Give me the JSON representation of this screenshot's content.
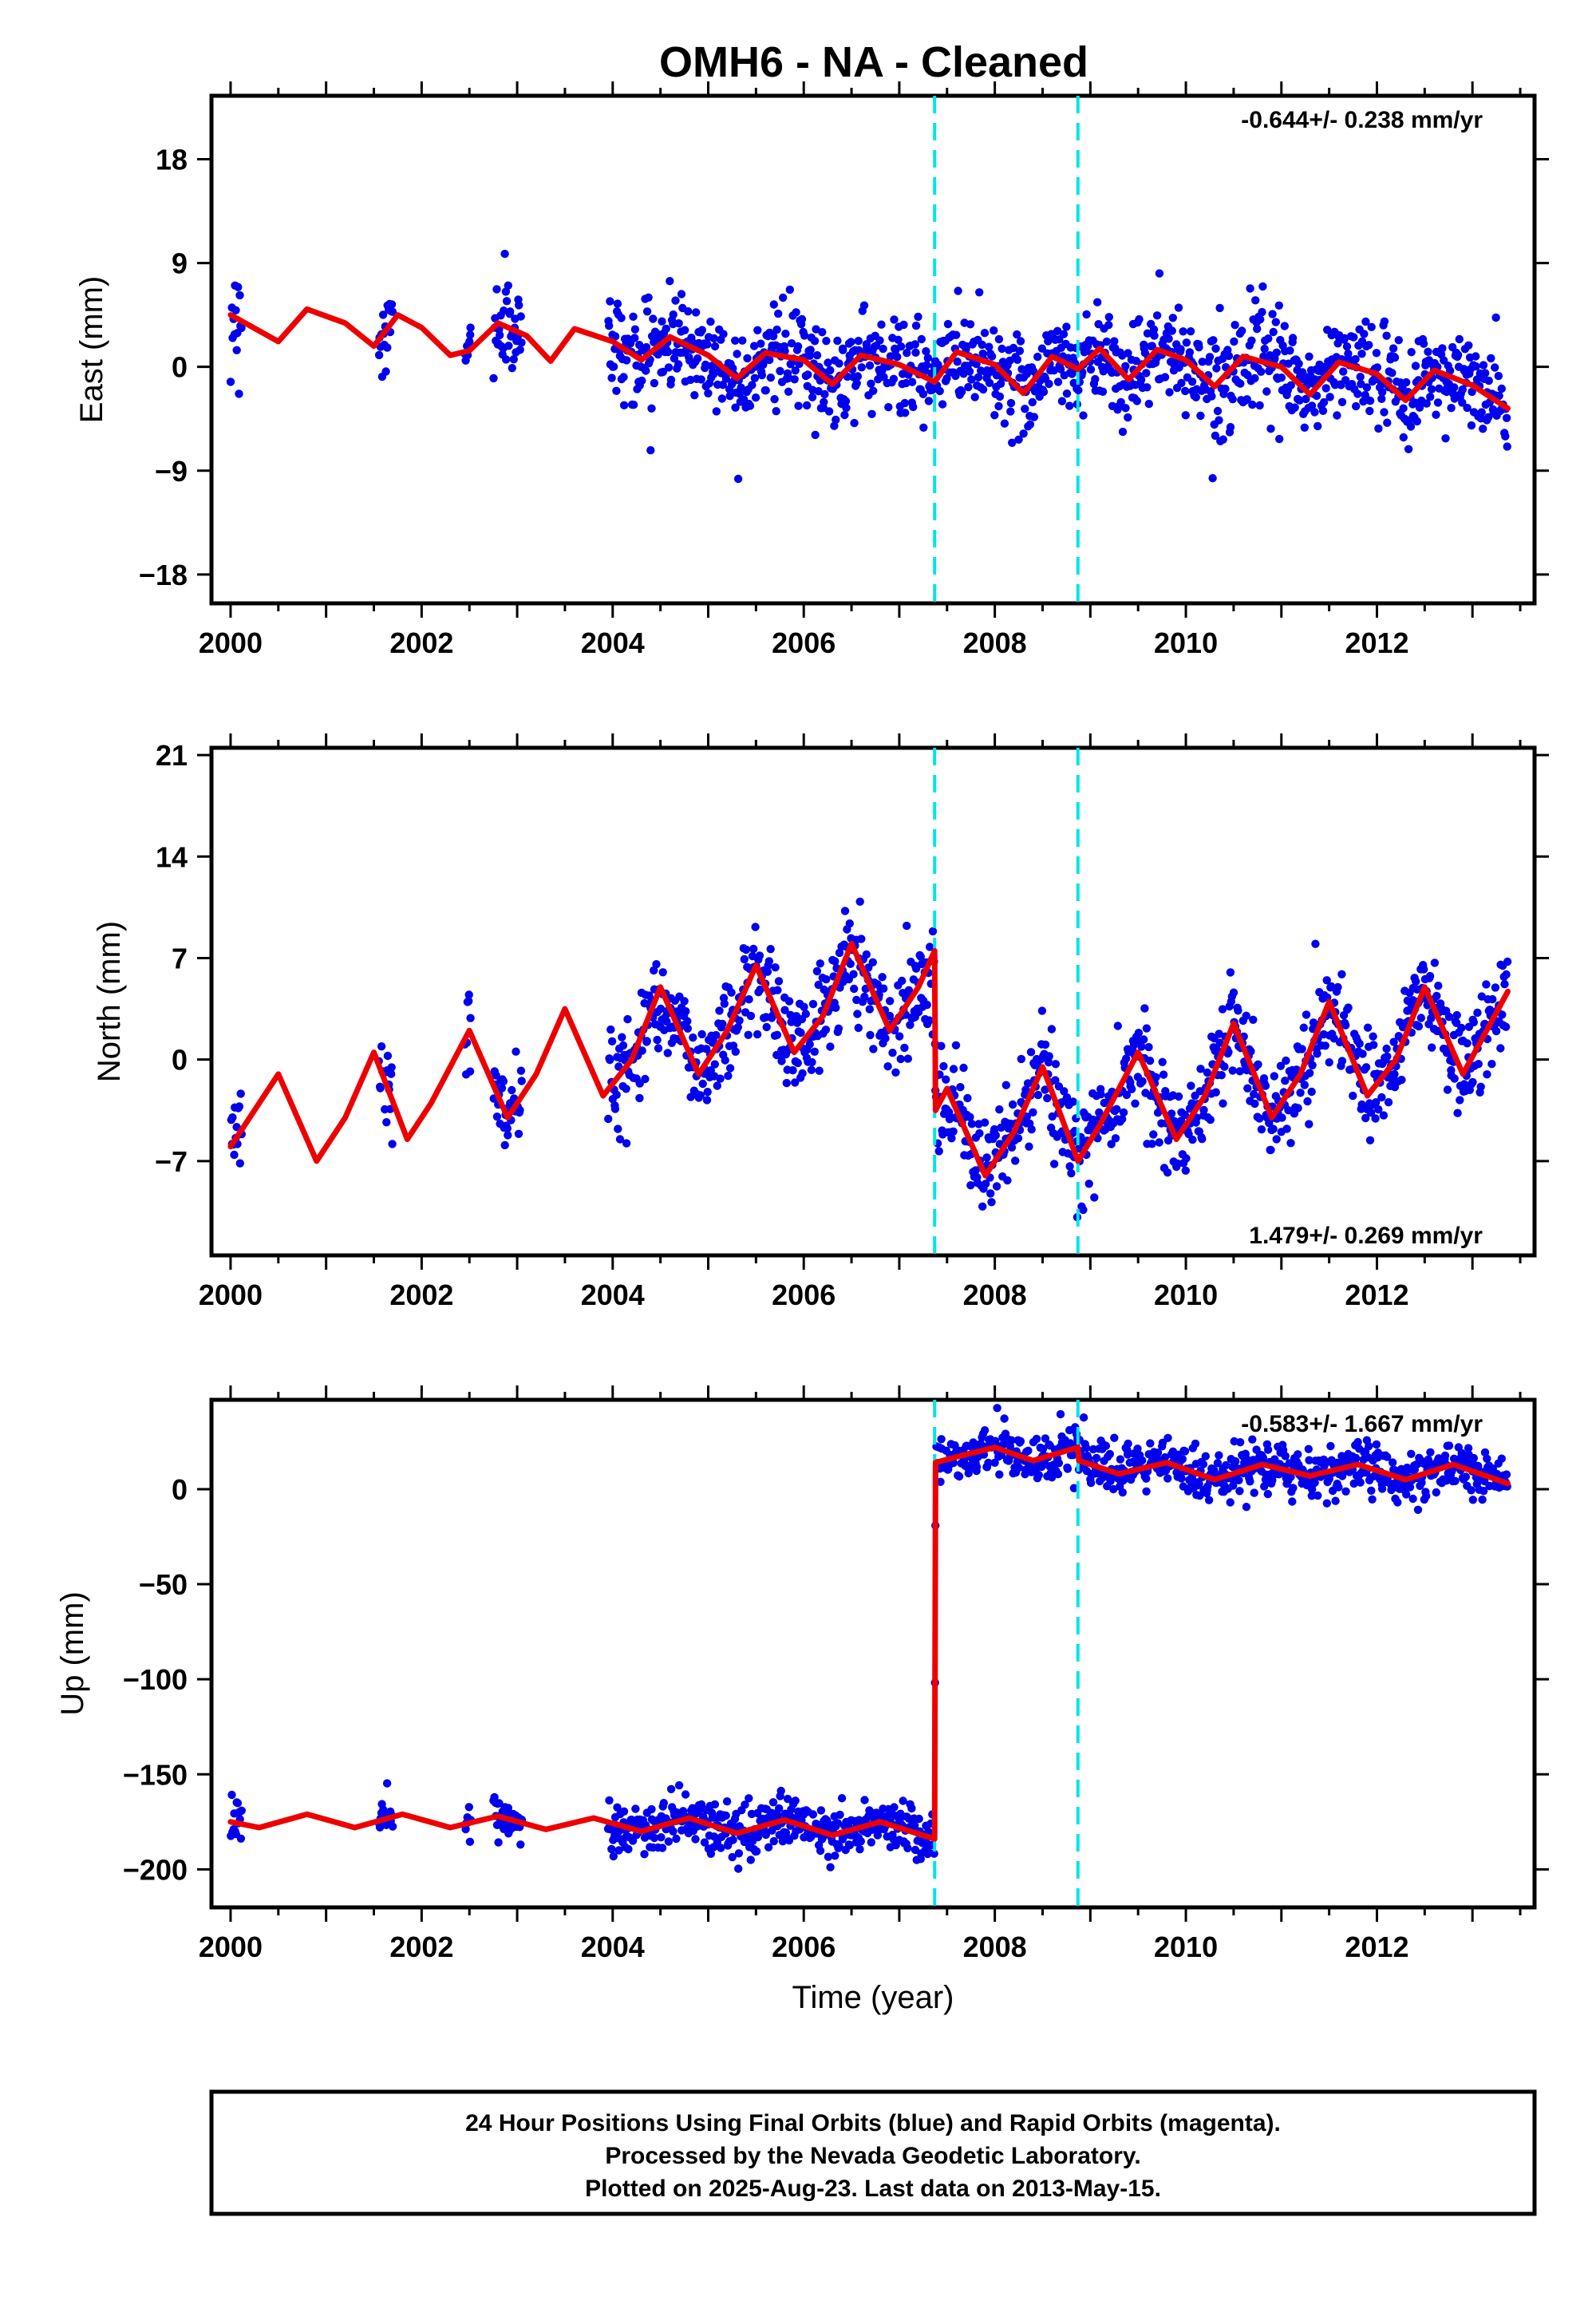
{
  "figure": {
    "title": "OMH6  - NA - Cleaned",
    "x_label": "Time (year)",
    "footer_lines": [
      "24 Hour Positions Using Final Orbits (blue) and Rapid Orbits (magenta).",
      "Processed by the Nevada Geodetic Laboratory.",
      "Plotted on 2025-Aug-23. Last data on 2013-May-15."
    ],
    "colors": {
      "data": "#0000ee",
      "model": "#ee0000",
      "event": "#00e5e5",
      "frame": "#000000"
    }
  },
  "chart_data": [
    {
      "type": "scatter",
      "panel": "east",
      "ylabel": "East (mm)",
      "xlim": [
        1999.8,
        2013.65
      ],
      "ylim": [
        -20.5,
        23.5
      ],
      "yticks": [
        -18,
        -9,
        0,
        9,
        18
      ],
      "xticks": [
        2000,
        2002,
        2004,
        2006,
        2008,
        2010,
        2012
      ],
      "rate": "-0.644+/- 0.238 mm/yr",
      "rate_position": "top-right",
      "event_lines": [
        2007.37,
        2008.87
      ],
      "data_segments": [
        {
          "start": 2000.0,
          "end": 2000.12
        },
        {
          "start": 2001.55,
          "end": 2001.7
        },
        {
          "start": 2002.45,
          "end": 2002.52
        },
        {
          "start": 2002.75,
          "end": 2003.05
        },
        {
          "start": 2003.95,
          "end": 2013.37
        }
      ],
      "series": [
        {
          "role": "model",
          "x": [
            2000.0,
            2000.5,
            2000.8,
            2001.2,
            2001.5,
            2001.75,
            2002.0,
            2002.3,
            2002.5,
            2002.8,
            2003.1,
            2003.35,
            2003.6,
            2004.0,
            2004.3,
            2004.6,
            2005.0,
            2005.3,
            2005.6,
            2006.0,
            2006.3,
            2006.6,
            2007.0,
            2007.37,
            2007.6,
            2008.0,
            2008.3,
            2008.6,
            2008.87,
            2009.1,
            2009.4,
            2009.7,
            2010.0,
            2010.3,
            2010.6,
            2011.0,
            2011.3,
            2011.6,
            2012.0,
            2012.3,
            2012.6,
            2013.0,
            2013.37
          ],
          "y": [
            4.5,
            2.2,
            5.0,
            3.8,
            1.8,
            4.5,
            3.4,
            1.0,
            1.4,
            3.8,
            2.7,
            0.5,
            3.3,
            2.2,
            0.6,
            2.6,
            1.0,
            -1.0,
            1.2,
            0.6,
            -1.5,
            1.0,
            0.2,
            -1.3,
            1.3,
            0.2,
            -2.3,
            0.9,
            -0.2,
            1.6,
            -1.1,
            1.5,
            0.6,
            -1.7,
            0.9,
            0.0,
            -2.4,
            0.4,
            -0.6,
            -2.9,
            -0.3,
            -1.6,
            -3.6
          ]
        }
      ]
    },
    {
      "type": "scatter",
      "panel": "north",
      "ylabel": "North (mm)",
      "xlim": [
        1999.8,
        2013.65
      ],
      "ylim": [
        -13.5,
        21.5
      ],
      "yticks": [
        -7,
        0,
        7,
        14,
        21
      ],
      "xticks": [
        2000,
        2002,
        2004,
        2006,
        2008,
        2010,
        2012
      ],
      "rate": "1.479+/- 0.269 mm/yr",
      "rate_position": "bottom-right",
      "event_lines": [
        2007.37,
        2008.87
      ],
      "data_segments": [
        {
          "start": 2000.0,
          "end": 2000.12
        },
        {
          "start": 2001.55,
          "end": 2001.7
        },
        {
          "start": 2002.45,
          "end": 2002.52
        },
        {
          "start": 2002.75,
          "end": 2003.05
        },
        {
          "start": 2003.95,
          "end": 2013.37
        }
      ],
      "series": [
        {
          "role": "model",
          "x": [
            2000.0,
            2000.15,
            2000.5,
            2000.9,
            2001.2,
            2001.5,
            2001.85,
            2002.1,
            2002.5,
            2002.9,
            2003.2,
            2003.5,
            2003.9,
            2004.2,
            2004.5,
            2004.9,
            2005.2,
            2005.5,
            2005.9,
            2006.2,
            2006.5,
            2006.9,
            2007.2,
            2007.37,
            2007.38,
            2007.5,
            2007.9,
            2008.2,
            2008.5,
            2008.87,
            2009.1,
            2009.5,
            2009.9,
            2010.2,
            2010.5,
            2010.9,
            2011.2,
            2011.5,
            2011.9,
            2012.2,
            2012.5,
            2012.9,
            2013.37
          ],
          "y": [
            -6.0,
            -4.5,
            -1.0,
            -7.0,
            -4.0,
            0.5,
            -5.5,
            -3.0,
            2.0,
            -4.0,
            -1.0,
            3.5,
            -2.5,
            0.0,
            5.0,
            -1.0,
            2.0,
            6.5,
            0.5,
            3.0,
            8.0,
            2.0,
            5.0,
            7.5,
            -3.5,
            -2.0,
            -8.0,
            -5.0,
            -0.5,
            -7.0,
            -4.5,
            0.5,
            -5.5,
            -2.5,
            2.5,
            -4.0,
            -1.0,
            4.0,
            -2.5,
            0.0,
            5.0,
            -1.0,
            4.7
          ]
        }
      ]
    },
    {
      "type": "scatter",
      "panel": "up",
      "ylabel": "Up (mm)",
      "xlim": [
        1999.8,
        2013.65
      ],
      "ylim": [
        -220,
        47
      ],
      "yticks": [
        -200,
        -150,
        -100,
        -50,
        0
      ],
      "xticks": [
        2000,
        2002,
        2004,
        2006,
        2008,
        2010,
        2012
      ],
      "rate": "-0.583+/- 1.667 mm/yr",
      "rate_position": "top-right",
      "event_lines": [
        2007.37,
        2008.87
      ],
      "data_segments": [
        {
          "start": 2000.0,
          "end": 2000.12
        },
        {
          "start": 2001.55,
          "end": 2001.7
        },
        {
          "start": 2002.45,
          "end": 2002.52
        },
        {
          "start": 2002.75,
          "end": 2003.05
        },
        {
          "start": 2003.95,
          "end": 2013.37
        }
      ],
      "series": [
        {
          "role": "model",
          "x": [
            2000.0,
            2000.3,
            2000.8,
            2001.3,
            2001.8,
            2002.3,
            2002.8,
            2003.3,
            2003.8,
            2004.3,
            2004.8,
            2005.3,
            2005.8,
            2006.3,
            2006.8,
            2007.37,
            2007.38,
            2007.6,
            2008.0,
            2008.4,
            2008.87,
            2008.88,
            2009.3,
            2009.8,
            2010.3,
            2010.8,
            2011.3,
            2011.8,
            2012.3,
            2012.8,
            2013.37
          ],
          "y": [
            -175,
            -178,
            -171,
            -178,
            -171,
            -178,
            -172,
            -179,
            -173,
            -180,
            -173,
            -181,
            -174,
            -182,
            -175,
            -184,
            14,
            17,
            22,
            15,
            22,
            15,
            8,
            14,
            5,
            13,
            7,
            13,
            5,
            13,
            3
          ]
        }
      ]
    }
  ]
}
